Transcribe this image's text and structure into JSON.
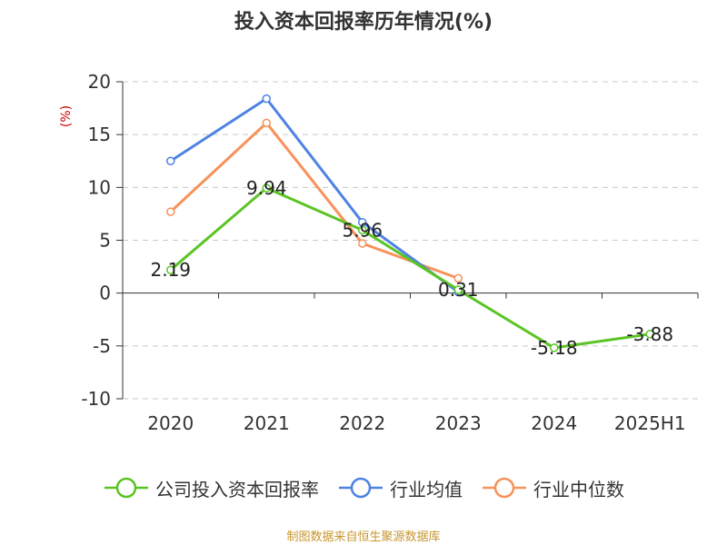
{
  "chart_data": {
    "type": "line",
    "title": "投入资本回报率历年情况(%)",
    "ylabel": "(%)",
    "xlabel": "",
    "categories": [
      "2020",
      "2021",
      "2022",
      "2023",
      "2024",
      "2025H1"
    ],
    "ylim": [
      -10,
      20
    ],
    "yticks": [
      20,
      15,
      10,
      5,
      0,
      -5,
      -10
    ],
    "grid": true,
    "legend_position": "bottom",
    "series": [
      {
        "name": "公司投入资本回报率",
        "color": "#5bc424",
        "values": [
          2.19,
          9.94,
          5.96,
          0.31,
          -5.18,
          -3.88
        ],
        "labels": [
          "2.19",
          "9.94",
          "5.96",
          "0.31",
          "-5.18",
          "-3.88"
        ]
      },
      {
        "name": "行业均值",
        "color": "#4e82e3",
        "values": [
          12.5,
          18.4,
          6.7,
          0.1,
          null,
          null
        ]
      },
      {
        "name": "行业中位数",
        "color": "#f7925a",
        "values": [
          7.7,
          16.1,
          4.7,
          1.4,
          null,
          null
        ]
      }
    ]
  },
  "source": "制图数据来自恒生聚源数据库"
}
